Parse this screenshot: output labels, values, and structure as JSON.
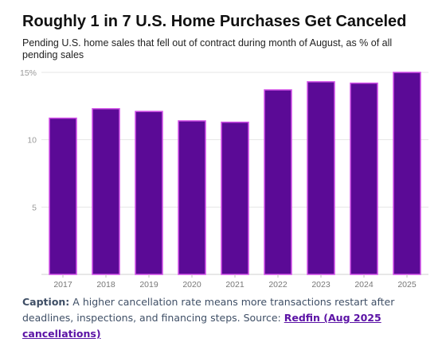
{
  "chart_data": {
    "type": "bar",
    "title": "Roughly 1 in 7 U.S. Home Purchases Get Canceled",
    "subtitle": "Pending U.S. home sales that fell out of contract during month of August, as % of all pending sales",
    "categories": [
      "2017",
      "2018",
      "2019",
      "2020",
      "2021",
      "2022",
      "2023",
      "2024",
      "2025"
    ],
    "values": [
      11.6,
      12.3,
      12.1,
      11.4,
      11.3,
      13.7,
      14.3,
      14.2,
      15.0
    ],
    "ylim": [
      0,
      15
    ],
    "yticks": [
      {
        "value": 5,
        "label": "5"
      },
      {
        "value": 10,
        "label": "10"
      },
      {
        "value": 15,
        "label": "15%"
      }
    ],
    "grid": true,
    "legend": "none",
    "colors": {
      "bar": "#5b0a96",
      "bar_edge": "#d24ee8",
      "grid": "#e6e6e6",
      "tick_label": "#9a9a9a"
    }
  },
  "caption": {
    "label": "Caption:",
    "text": "A higher cancellation rate means more transactions restart after deadlines, inspections, and financing steps. Source:",
    "link_text": "Redfin (Aug 2025 cancellations)"
  }
}
